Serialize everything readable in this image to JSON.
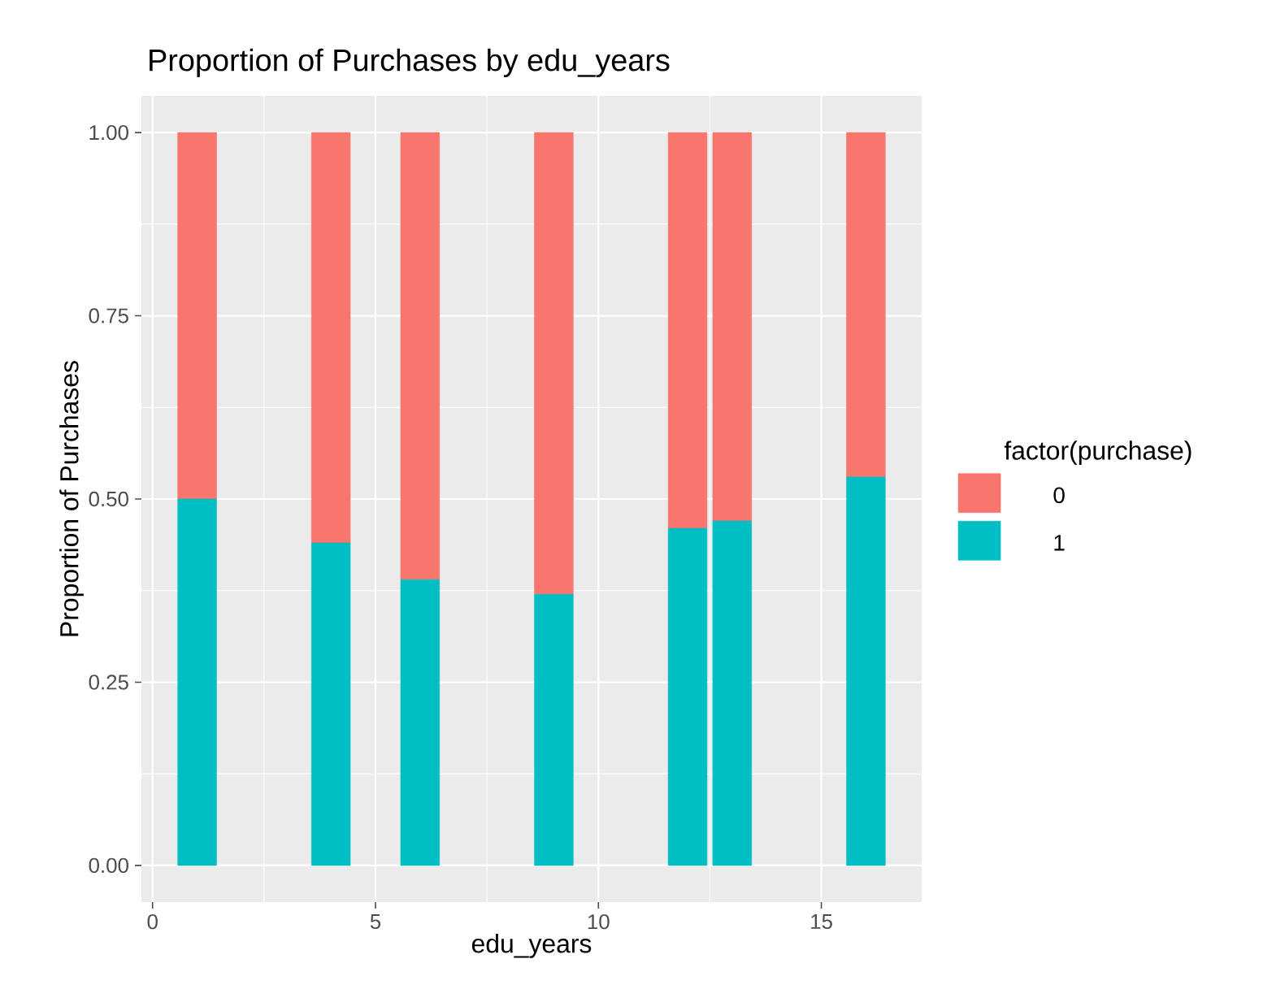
{
  "chart_data": {
    "type": "bar",
    "stacked": true,
    "title": "Proportion of Purchases by edu_years",
    "xlabel": "edu_years",
    "ylabel": "Proportion of Purchases",
    "legend_title": "factor(purchase)",
    "legend": "right",
    "grid": true,
    "x": [
      1,
      4,
      6,
      9,
      12,
      13,
      16
    ],
    "series": [
      {
        "name": "1",
        "color": "#00bfc4",
        "values": [
          0.5,
          0.44,
          0.39,
          0.37,
          0.46,
          0.47,
          0.53
        ]
      },
      {
        "name": "0",
        "color": "#f8766d",
        "values": [
          0.5,
          0.56,
          0.61,
          0.63,
          0.54,
          0.53,
          0.47
        ]
      }
    ],
    "xlim": [
      -0.25,
      17.25
    ],
    "xticks": [
      0,
      5,
      10,
      15
    ],
    "ylim": [
      -0.05,
      1.05
    ],
    "yticks": [
      {
        "value": 0,
        "label": "0.00"
      },
      {
        "value": 0.25,
        "label": "0.25"
      },
      {
        "value": 0.5,
        "label": "0.50"
      },
      {
        "value": 0.75,
        "label": "0.75"
      },
      {
        "value": 1,
        "label": "1.00"
      }
    ]
  }
}
